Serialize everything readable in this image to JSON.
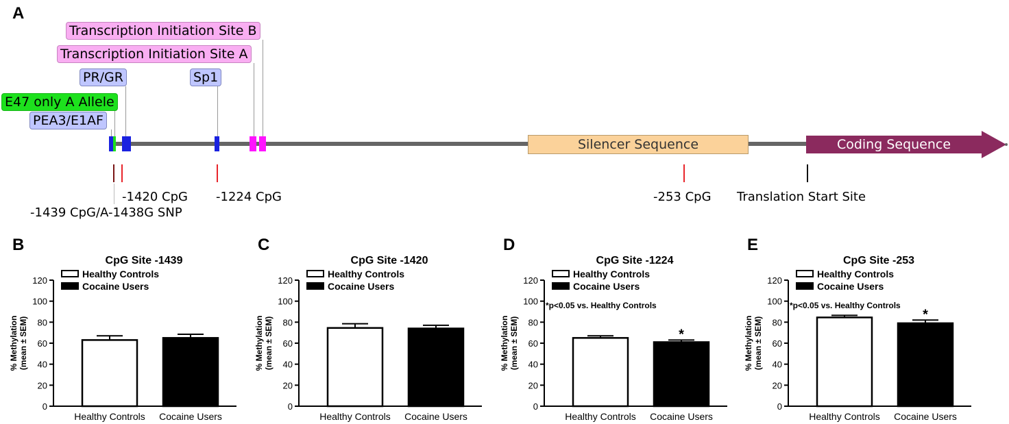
{
  "panel_a": {
    "letter": "A",
    "tags": {
      "tis_b": "Transcription Initiation Site B",
      "tis_a": "Transcription Initiation Site A",
      "pr_gr": "PR/GR",
      "sp1": "Sp1",
      "e47": "E47 only A Allele",
      "pea3": "PEA3/E1AF"
    },
    "silencer": "Silencer Sequence",
    "coding": "Coding Sequence",
    "cpg_labels": {
      "c1420": "-1420 CpG",
      "c1224": "-1224 CpG",
      "c253": "-253 CpG",
      "translation": "Translation Start Site",
      "c1439": "-1439 CpG/A-1438G SNP"
    },
    "colors": {
      "backbone": "#666666",
      "box_blue": "#1a22e0",
      "box_magenta": "#ff14ff",
      "silencer_fill": "#fbd29a",
      "coding_fill": "#8b2a5e",
      "cpg_red": "#e8242a",
      "cpg_dark": "#7a1515"
    }
  },
  "chart_data": [
    {
      "letter": "B",
      "type": "bar",
      "title": "CpG Site -1439",
      "categories": [
        "Healthy Controls",
        "Cocaine Users"
      ],
      "values": [
        63,
        65
      ],
      "errors": [
        4,
        3.5
      ],
      "ylabel1": "% Methylation",
      "ylabel2": "(mean ± SEM)",
      "ylim": [
        0,
        120
      ],
      "yticks": [
        0,
        20,
        40,
        60,
        80,
        100,
        120
      ],
      "legend": [
        "Healthy Controls",
        "Cocaine Users"
      ],
      "note": "",
      "significance": [
        "",
        ""
      ]
    },
    {
      "letter": "C",
      "type": "bar",
      "title": "CpG Site -1420",
      "categories": [
        "Healthy Controls",
        "Cocaine Users"
      ],
      "values": [
        74.5,
        74
      ],
      "errors": [
        4,
        3
      ],
      "ylabel1": "% Methylation",
      "ylabel2": "(mean ± SEM)",
      "ylim": [
        0,
        120
      ],
      "yticks": [
        0,
        20,
        40,
        60,
        80,
        100,
        120
      ],
      "legend": [
        "Healthy Controls",
        "Cocaine Users"
      ],
      "note": "",
      "significance": [
        "",
        ""
      ]
    },
    {
      "letter": "D",
      "type": "bar",
      "title": "CpG Site -1224",
      "categories": [
        "Healthy Controls",
        "Cocaine Users"
      ],
      "values": [
        65,
        61
      ],
      "errors": [
        2,
        2
      ],
      "ylabel1": "% Methylation",
      "ylabel2": "(mean ± SEM)",
      "ylim": [
        0,
        120
      ],
      "yticks": [
        0,
        20,
        40,
        60,
        80,
        100,
        120
      ],
      "legend": [
        "Healthy Controls",
        "Cocaine Users"
      ],
      "note": "*p<0.05 vs. Healthy Controls",
      "significance": [
        "",
        "*"
      ]
    },
    {
      "letter": "E",
      "type": "bar",
      "title": "CpG Site -253",
      "categories": [
        "Healthy Controls",
        "Cocaine Users"
      ],
      "values": [
        84.5,
        79
      ],
      "errors": [
        2,
        3
      ],
      "ylabel1": "% Methylation",
      "ylabel2": "(mean ± SEM)",
      "ylim": [
        0,
        120
      ],
      "yticks": [
        0,
        20,
        40,
        60,
        80,
        100,
        120
      ],
      "legend": [
        "Healthy Controls",
        "Cocaine Users"
      ],
      "note": "*p<0.05 vs. Healthy Controls",
      "significance": [
        "",
        "*"
      ]
    }
  ]
}
